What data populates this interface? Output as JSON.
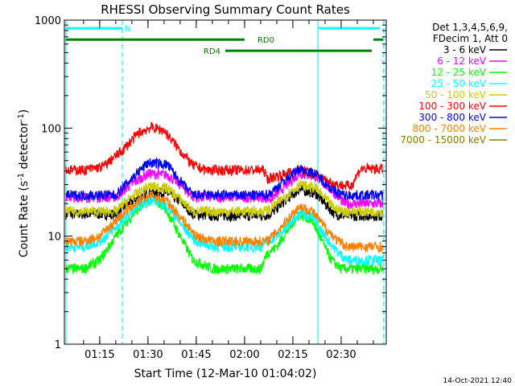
{
  "chart_data": {
    "type": "line",
    "title": "RHESSI Observing Summary Count Rates",
    "xlabel": "Start Time (12-Mar-10 01:04:02)",
    "ylabel_parts": [
      "Count Rate (s",
      "-1",
      " detector",
      "-1",
      ")"
    ],
    "y_scale": "log",
    "ylim": [
      1,
      1000
    ],
    "y_ticks": [
      {
        "v": 1,
        "label": "1"
      },
      {
        "v": 10,
        "label": "10"
      },
      {
        "v": 100,
        "label": "100"
      },
      {
        "v": 1000,
        "label": "1000"
      }
    ],
    "xlim_minutes": [
      64.03,
      164.0
    ],
    "x_ticks": [
      {
        "m": 75,
        "label": "01:15"
      },
      {
        "m": 90,
        "label": "01:30"
      },
      {
        "m": 105,
        "label": "01:45"
      },
      {
        "m": 120,
        "label": "02:00"
      },
      {
        "m": 135,
        "label": "02:15"
      },
      {
        "m": 150,
        "label": "02:30"
      }
    ],
    "legend_header": [
      "Det 1,3,4,5,6,9,",
      "FDecim 1, Att 0"
    ],
    "series": [
      {
        "name": "3 - 6 keV",
        "color": "#000000",
        "points": [
          [
            64.5,
            16
          ],
          [
            80,
            16
          ],
          [
            84,
            20
          ],
          [
            90,
            25.5
          ],
          [
            96,
            25
          ],
          [
            100,
            21
          ],
          [
            104,
            16
          ],
          [
            110,
            15.5
          ],
          [
            126,
            15.5
          ],
          [
            128,
            16
          ],
          [
            133,
            22
          ],
          [
            137,
            27
          ],
          [
            142,
            25
          ],
          [
            148,
            16
          ],
          [
            151,
            15.5
          ],
          [
            163,
            15.5
          ]
        ]
      },
      {
        "name": "6 - 12 keV",
        "color": "#ff00ff",
        "points": [
          [
            64.5,
            23
          ],
          [
            80,
            23
          ],
          [
            84,
            29
          ],
          [
            90,
            38
          ],
          [
            96,
            37
          ],
          [
            100,
            30
          ],
          [
            104,
            23
          ],
          [
            110,
            23
          ],
          [
            126,
            23
          ],
          [
            128,
            22
          ],
          [
            133,
            30
          ],
          [
            137,
            38
          ],
          [
            142,
            36
          ],
          [
            148,
            25
          ],
          [
            151,
            20
          ],
          [
            163,
            20
          ]
        ]
      },
      {
        "name": "12 - 25 keV",
        "color": "#00ff00",
        "points": [
          [
            64.5,
            5
          ],
          [
            70,
            5
          ],
          [
            75,
            6
          ],
          [
            80,
            10
          ],
          [
            86,
            17
          ],
          [
            91,
            22
          ],
          [
            95,
            19
          ],
          [
            100,
            10
          ],
          [
            104,
            6
          ],
          [
            110,
            5
          ],
          [
            125,
            5
          ],
          [
            127,
            7
          ],
          [
            130,
            8
          ],
          [
            133,
            11
          ],
          [
            137,
            16
          ],
          [
            141,
            14
          ],
          [
            144,
            9
          ],
          [
            147,
            6
          ],
          [
            150,
            5
          ],
          [
            163,
            5
          ]
        ]
      },
      {
        "name": "25 - 50 keV",
        "color": "#00ffff",
        "points": [
          [
            64.5,
            8
          ],
          [
            70,
            8
          ],
          [
            75,
            9
          ],
          [
            80,
            12
          ],
          [
            86,
            18
          ],
          [
            91,
            22
          ],
          [
            96,
            19
          ],
          [
            101,
            12
          ],
          [
            105,
            9
          ],
          [
            110,
            8
          ],
          [
            125,
            8
          ],
          [
            127,
            9
          ],
          [
            130,
            10
          ],
          [
            133,
            12
          ],
          [
            137,
            17
          ],
          [
            141,
            15
          ],
          [
            145,
            10
          ],
          [
            149,
            7
          ],
          [
            152,
            6
          ],
          [
            163,
            6
          ]
        ]
      },
      {
        "name": "50 - 100 keV",
        "color": "#cccc00",
        "points": [
          [
            64.5,
            17
          ],
          [
            80,
            17
          ],
          [
            84,
            22
          ],
          [
            90,
            29
          ],
          [
            96,
            28
          ],
          [
            100,
            22
          ],
          [
            104,
            17
          ],
          [
            126,
            17
          ],
          [
            128,
            18
          ],
          [
            133,
            24
          ],
          [
            137,
            30
          ],
          [
            142,
            28
          ],
          [
            148,
            18
          ],
          [
            151,
            17
          ],
          [
            163,
            17
          ]
        ]
      },
      {
        "name": "100 - 300 keV",
        "color": "#ff0000",
        "points": [
          [
            64.5,
            41
          ],
          [
            70,
            41
          ],
          [
            76,
            44
          ],
          [
            82,
            62
          ],
          [
            87,
            90
          ],
          [
            91,
            102
          ],
          [
            95,
            95
          ],
          [
            100,
            62
          ],
          [
            104,
            45
          ],
          [
            108,
            41
          ],
          [
            124,
            41
          ],
          [
            126,
            41
          ],
          [
            127,
            34
          ],
          [
            133,
            38
          ],
          [
            137,
            42
          ],
          [
            141,
            38
          ],
          [
            146,
            32
          ],
          [
            149,
            30
          ],
          [
            153,
            29
          ],
          [
            156,
            42
          ],
          [
            163,
            42
          ]
        ]
      },
      {
        "name": "300 - 800 keV",
        "color": "#0000ff",
        "points": [
          [
            64.5,
            24
          ],
          [
            80,
            24
          ],
          [
            84,
            32
          ],
          [
            90,
            48
          ],
          [
            96,
            46
          ],
          [
            100,
            32
          ],
          [
            104,
            24
          ],
          [
            126,
            24
          ],
          [
            128,
            25
          ],
          [
            133,
            34
          ],
          [
            137,
            42
          ],
          [
            142,
            38
          ],
          [
            148,
            26
          ],
          [
            151,
            24
          ],
          [
            163,
            24
          ]
        ]
      },
      {
        "name": "800 - 7000 keV",
        "color": "#ff8000",
        "points": [
          [
            64.5,
            9
          ],
          [
            70,
            9
          ],
          [
            75,
            10
          ],
          [
            80,
            14
          ],
          [
            86,
            20
          ],
          [
            91,
            24
          ],
          [
            96,
            21
          ],
          [
            101,
            14
          ],
          [
            105,
            10
          ],
          [
            110,
            9
          ],
          [
            125,
            9
          ],
          [
            127,
            9
          ],
          [
            130,
            11
          ],
          [
            133,
            14
          ],
          [
            137,
            19
          ],
          [
            141,
            17
          ],
          [
            145,
            12
          ],
          [
            149,
            9
          ],
          [
            152,
            8
          ],
          [
            163,
            8
          ]
        ]
      },
      {
        "name": "7000 - 15000 keV",
        "color": "#808000",
        "points": []
      }
    ],
    "annotations": {
      "bars": [
        {
          "label": "N",
          "color": "#00ffff",
          "segments": [
            [
              64.5,
              82
            ]
          ],
          "y": 840
        },
        {
          "label": "",
          "color": "#00ffff",
          "segments": [
            [
              143,
              162
            ]
          ],
          "y": 840
        },
        {
          "label": "RD0",
          "color": "#008000",
          "segments": [
            [
              64.5,
              120
            ],
            [
              160,
              163
            ]
          ],
          "y": 660
        },
        {
          "label": "RD4",
          "color": "#008000",
          "segments": [
            [
              114,
              159.5
            ]
          ],
          "y": 520
        }
      ],
      "vlines": [
        {
          "m": 64.5,
          "color": "#00ffff",
          "dashed": false
        },
        {
          "m": 82.0,
          "color": "#00ffff",
          "dashed": true
        },
        {
          "m": 142.8,
          "color": "#00ffff",
          "dashed": false
        },
        {
          "m": 163.2,
          "color": "#00ffff",
          "dashed": true
        }
      ]
    },
    "footer_date": "14-Oct-2021 12:40"
  }
}
